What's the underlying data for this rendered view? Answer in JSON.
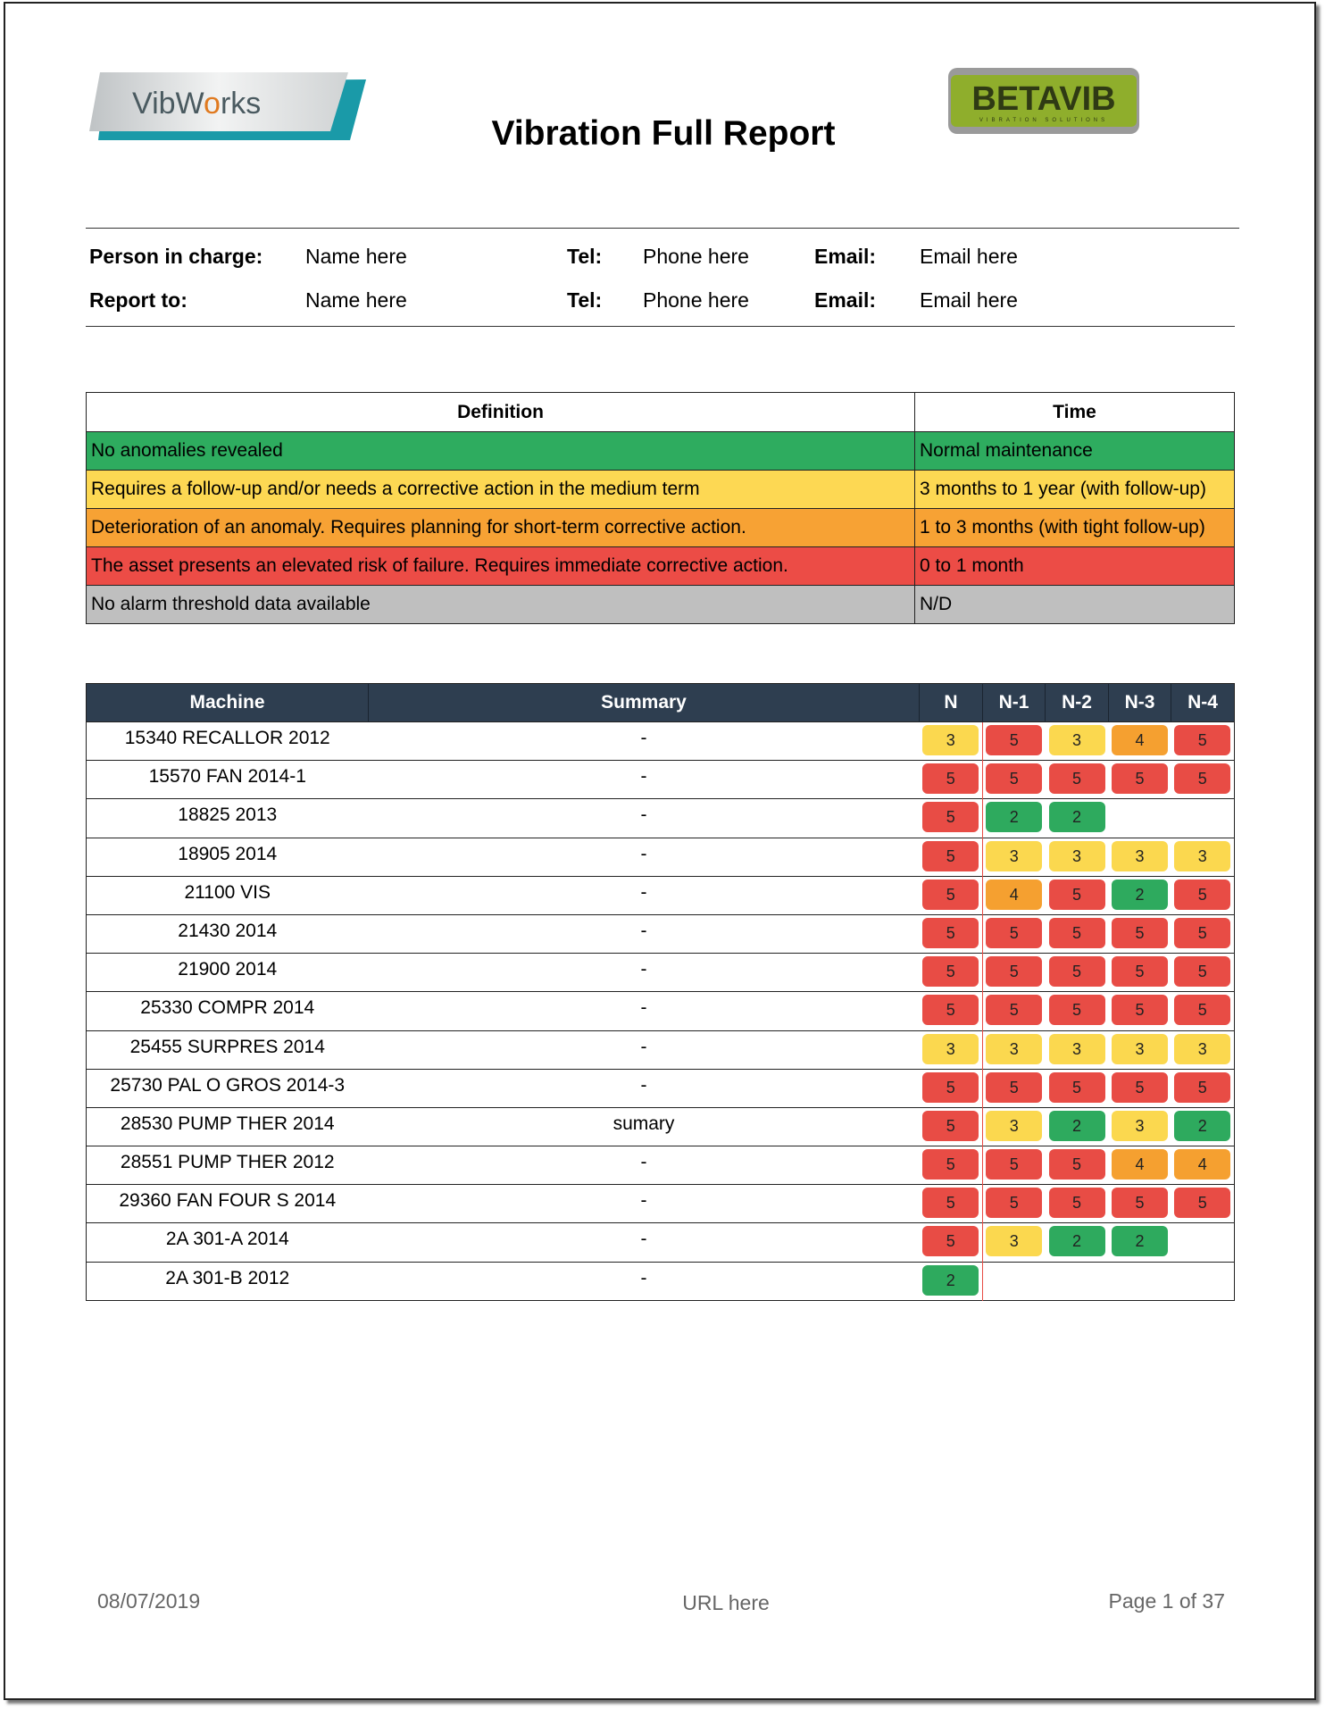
{
  "header": {
    "title": "Vibration Full Report",
    "logo_left": "VibWorks",
    "logo_right": "BETAVIB",
    "logo_right_tagline": "VIBRATION SOLUTIONS"
  },
  "contacts": [
    {
      "label": "Person in charge:",
      "name": "Name here",
      "tel_label": "Tel:",
      "tel": "Phone here",
      "email_label": "Email:",
      "email": "Email here"
    },
    {
      "label": "Report to:",
      "name": "Name here",
      "tel_label": "Tel:",
      "tel": "Phone here",
      "email_label": "Email:",
      "email": "Email here"
    }
  ],
  "legend": {
    "headers": [
      "Definition",
      "Time"
    ],
    "rows": [
      {
        "definition": "No anomalies revealed",
        "time": "Normal maintenance",
        "color": "#2eac5f"
      },
      {
        "definition": "Requires a follow-up and/or needs a corrective action in the medium term",
        "time": "3 months to 1 year (with follow-up)",
        "color": "#fdd853"
      },
      {
        "definition": "Deterioration of an anomaly. Requires planning for short-term corrective action.",
        "time": "1 to 3 months (with tight follow-up)",
        "color": "#f7a234"
      },
      {
        "definition": "The asset presents an elevated risk of failure. Requires immediate corrective action.",
        "time": "0 to 1 month",
        "color": "#ec4c46"
      },
      {
        "definition": "No alarm threshold data available",
        "time": "N/D",
        "color": "#bfbfbf"
      }
    ]
  },
  "status_colors": {
    "2": "#2eaa5e",
    "3": "#fbd84f",
    "4": "#f5a030",
    "5": "#e84c45"
  },
  "machines": {
    "headers": [
      "Machine",
      "Summary",
      "N",
      "N-1",
      "N-2",
      "N-3",
      "N-4"
    ],
    "rows": [
      {
        "machine": "15340 RECALLOR 2012",
        "summary": "-",
        "status": [
          "3",
          "5",
          "3",
          "4",
          "5"
        ]
      },
      {
        "machine": "15570 FAN 2014-1",
        "summary": "-",
        "status": [
          "5",
          "5",
          "5",
          "5",
          "5"
        ]
      },
      {
        "machine": "18825 2013",
        "summary": "-",
        "status": [
          "5",
          "2",
          "2"
        ]
      },
      {
        "machine": "18905 2014",
        "summary": "-",
        "status": [
          "5",
          "3",
          "3",
          "3",
          "3"
        ]
      },
      {
        "machine": "21100 VIS",
        "summary": "-",
        "status": [
          "5",
          "4",
          "5",
          "2",
          "5"
        ]
      },
      {
        "machine": "21430 2014",
        "summary": "-",
        "status": [
          "5",
          "5",
          "5",
          "5",
          "5"
        ]
      },
      {
        "machine": "21900 2014",
        "summary": "-",
        "status": [
          "5",
          "5",
          "5",
          "5",
          "5"
        ]
      },
      {
        "machine": "25330 COMPR 2014",
        "summary": "-",
        "status": [
          "5",
          "5",
          "5",
          "5",
          "5"
        ]
      },
      {
        "machine": "25455 SURPRES 2014",
        "summary": "-",
        "status": [
          "3",
          "3",
          "3",
          "3",
          "3"
        ]
      },
      {
        "machine": "25730 PAL O GROS 2014-3",
        "summary": "-",
        "status": [
          "5",
          "5",
          "5",
          "5",
          "5"
        ]
      },
      {
        "machine": "28530 PUMP THER 2014",
        "summary": "sumary",
        "status": [
          "5",
          "3",
          "2",
          "3",
          "2"
        ]
      },
      {
        "machine": "28551 PUMP THER 2012",
        "summary": "-",
        "status": [
          "5",
          "5",
          "5",
          "4",
          "4"
        ]
      },
      {
        "machine": "29360 FAN FOUR S 2014",
        "summary": "-",
        "status": [
          "5",
          "5",
          "5",
          "5",
          "5"
        ]
      },
      {
        "machine": "2A 301-A 2014",
        "summary": "-",
        "status": [
          "5",
          "3",
          "2",
          "2"
        ]
      },
      {
        "machine": "2A 301-B 2012",
        "summary": "-",
        "status": [
          "2"
        ]
      }
    ]
  },
  "footer": {
    "date": "08/07/2019",
    "url": "URL here",
    "page": "Page 1 of 37"
  }
}
